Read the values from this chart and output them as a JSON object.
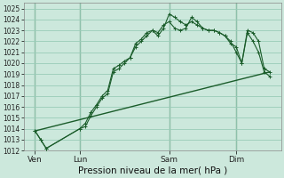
{
  "title": "Pression niveau de la mer( hPa )",
  "bg_color": "#cce8dc",
  "grid_color": "#99ccb8",
  "line_color": "#1a5c2a",
  "ylim": [
    1012,
    1025.5
  ],
  "yticks": [
    1012,
    1013,
    1014,
    1015,
    1016,
    1017,
    1018,
    1019,
    1020,
    1021,
    1022,
    1023,
    1024,
    1025
  ],
  "day_labels": [
    "Ven",
    "Lun",
    "Sam",
    "Dim"
  ],
  "day_positions": [
    2,
    10,
    26,
    38
  ],
  "x_minor_step": 2,
  "line1_x": [
    2,
    3,
    4,
    10,
    11,
    12,
    13,
    14,
    15,
    16,
    17,
    18,
    19,
    20,
    21,
    22,
    23,
    24,
    25,
    26,
    27,
    28,
    29,
    30,
    31,
    32,
    33,
    34,
    35,
    36,
    37,
    38,
    39,
    40,
    41,
    42,
    43,
    44
  ],
  "line1_y": [
    1013.8,
    1013.0,
    1012.2,
    1014.0,
    1014.5,
    1015.5,
    1016.2,
    1017.0,
    1017.5,
    1019.5,
    1019.8,
    1020.2,
    1020.5,
    1021.8,
    1022.2,
    1022.8,
    1023.0,
    1022.8,
    1023.5,
    1023.8,
    1023.2,
    1023.0,
    1023.2,
    1024.2,
    1023.8,
    1023.2,
    1023.0,
    1023.0,
    1022.8,
    1022.5,
    1022.0,
    1021.0,
    1020.0,
    1023.0,
    1022.8,
    1022.0,
    1019.5,
    1019.2
  ],
  "line2_x": [
    2,
    3,
    4,
    10,
    11,
    12,
    13,
    14,
    15,
    16,
    17,
    18,
    19,
    20,
    21,
    22,
    23,
    24,
    25,
    26,
    27,
    28,
    29,
    30,
    31,
    32,
    33,
    34,
    35,
    36,
    37,
    38,
    39,
    40,
    41,
    42,
    43,
    44
  ],
  "line2_y": [
    1013.8,
    1013.0,
    1012.2,
    1014.0,
    1014.2,
    1015.2,
    1016.0,
    1016.8,
    1017.2,
    1019.2,
    1019.5,
    1020.0,
    1020.5,
    1021.5,
    1022.0,
    1022.5,
    1023.0,
    1022.5,
    1023.2,
    1024.5,
    1024.2,
    1023.8,
    1023.5,
    1023.8,
    1023.5,
    1023.2,
    1023.0,
    1023.0,
    1022.8,
    1022.5,
    1021.8,
    1021.5,
    1020.0,
    1022.8,
    1022.0,
    1021.0,
    1019.2,
    1018.8
  ],
  "line3_x": [
    2,
    44
  ],
  "line3_y": [
    1013.8,
    1019.2
  ],
  "xlim": [
    0,
    46
  ],
  "xlabel_fontsize": 7.5,
  "ytick_fontsize": 5.5,
  "xtick_fontsize": 6.5
}
